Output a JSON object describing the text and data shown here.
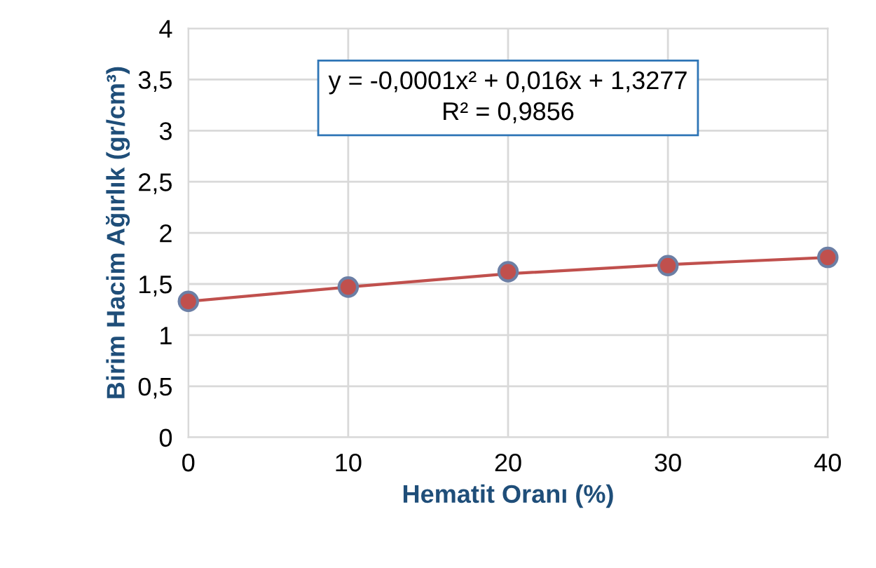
{
  "chart_data": {
    "type": "scatter",
    "xlabel": "Hematit Oranı (%)",
    "ylabel": "Birim Hacim Ağırlık (gr/cm³)",
    "x": [
      0,
      10,
      20,
      30,
      40
    ],
    "series": [
      {
        "type": "line",
        "color": "#c0504d",
        "x": [
          0,
          10,
          20,
          30,
          40
        ],
        "values": [
          1.33,
          1.47,
          1.6,
          1.69,
          1.76
        ],
        "marker": "none"
      },
      {
        "color": "#c0504d",
        "values": [
          1.33,
          1.47,
          1.62,
          1.68,
          1.76
        ],
        "marker": "circle"
      }
    ],
    "xlim": [
      0,
      40
    ],
    "xticks": [
      0,
      10,
      20,
      30,
      40
    ],
    "ylim": [
      0,
      4
    ],
    "yticks": [
      0,
      {
        "value": 0.5,
        "label": "0,5"
      },
      1,
      {
        "value": 1.5,
        "label": "1,5"
      },
      2,
      {
        "value": 2.5,
        "label": "2,5"
      },
      3,
      {
        "value": 3.5,
        "label": "3,5"
      },
      4
    ],
    "grid": true,
    "annotations": [
      "y = -0,0001x² + 0,016x + 1,3277\nR² = 0,9856"
    ]
  }
}
